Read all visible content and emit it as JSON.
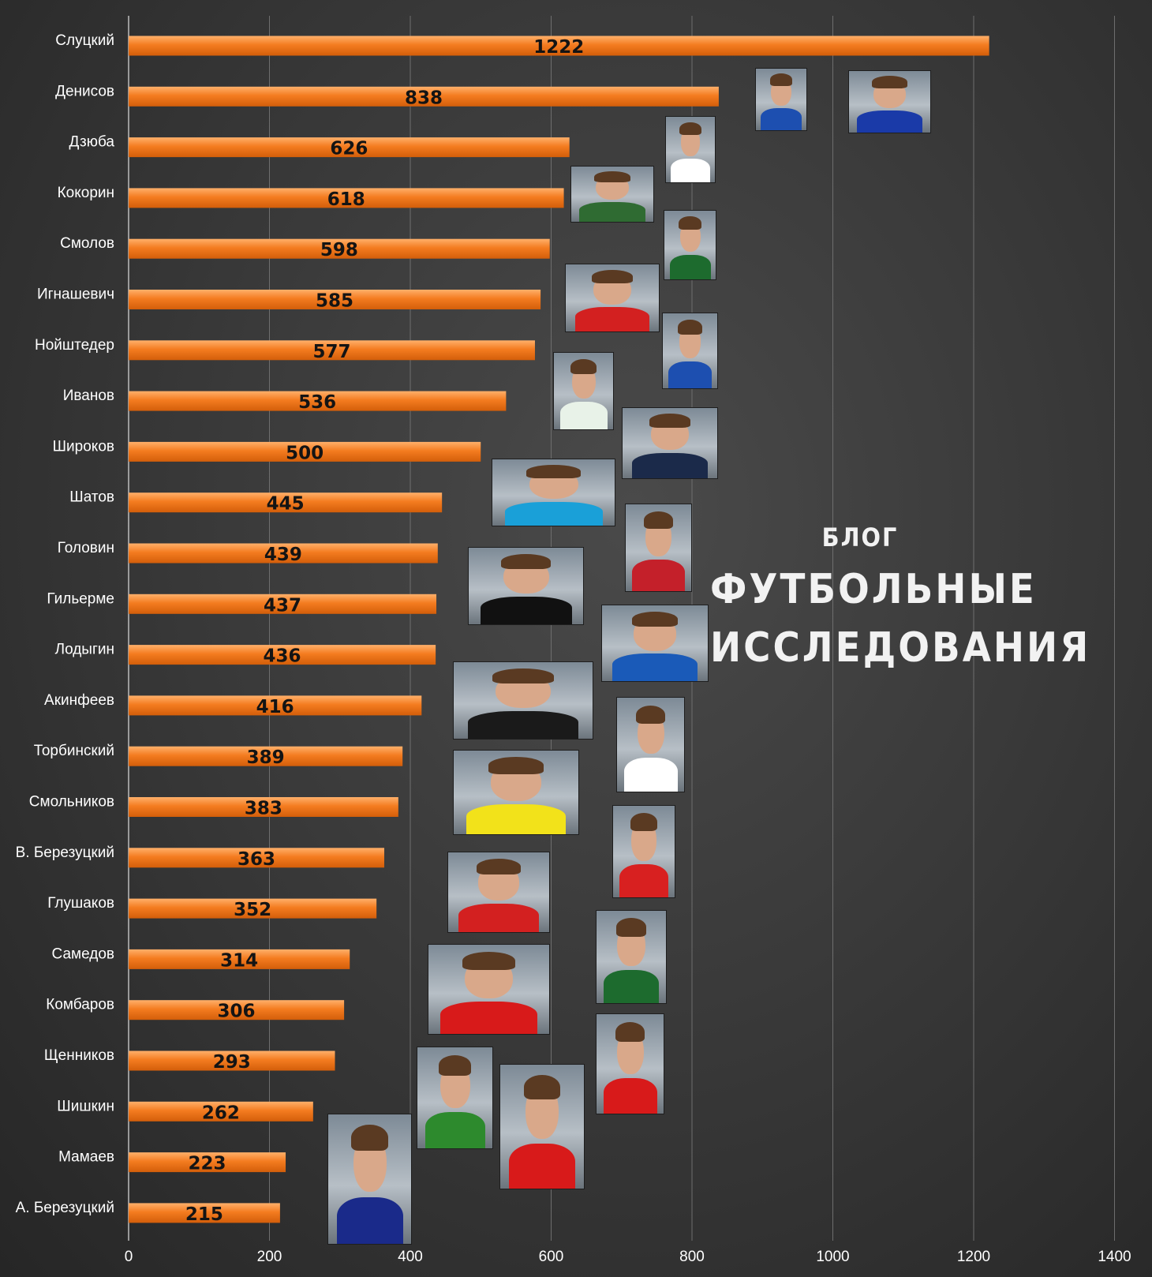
{
  "chart_data": {
    "type": "bar",
    "orientation": "horizontal",
    "categories": [
      "Слуцкий",
      "Денисов",
      "Дзюба",
      "Кокорин",
      "Смолов",
      "Игнашевич",
      "Нойштедер",
      "Иванов",
      "Широков",
      "Шатов",
      "Головин",
      "Гильерме",
      "Лодыгин",
      "Акинфеев",
      "Торбинский",
      "Смольников",
      "В. Березуцкий",
      "Глушаков",
      "Самедов",
      "Комбаров",
      "Щенников",
      "Шишкин",
      "Мамаев",
      "А. Березуцкий"
    ],
    "values": [
      1222,
      838,
      626,
      618,
      598,
      585,
      577,
      536,
      500,
      445,
      439,
      437,
      436,
      416,
      389,
      383,
      363,
      352,
      314,
      306,
      293,
      262,
      223,
      215
    ],
    "xlim": [
      0,
      1400
    ],
    "xticks": [
      0,
      200,
      400,
      600,
      800,
      1000,
      1200,
      1400
    ],
    "grid": true,
    "bar_color": "#f47c20",
    "value_labels": true
  },
  "branding": {
    "small": "БЛОГ",
    "line1": "ФУТБОЛЬНЫЕ",
    "line2": "ИССЛЕДОВАНИЯ"
  }
}
